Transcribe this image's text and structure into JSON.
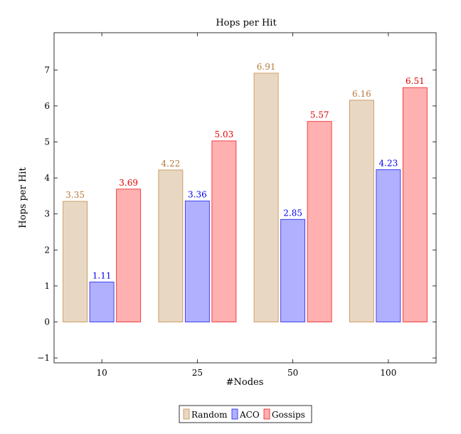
{
  "chart_data": {
    "type": "bar",
    "title": "Hops per Hit",
    "xlabel": "#Nodes",
    "ylabel": "Hops per Hit",
    "categories": [
      "10",
      "25",
      "50",
      "100"
    ],
    "ylim": [
      -1,
      8
    ],
    "yticks": [
      "−1",
      "0",
      "1",
      "2",
      "3",
      "4",
      "5",
      "6",
      "7"
    ],
    "grid": false,
    "legend_position": "bottom-center",
    "series": [
      {
        "name": "Random",
        "values": [
          3.35,
          4.22,
          6.91,
          6.16
        ],
        "labels": [
          "3.35",
          "4.22",
          "6.91",
          "6.16"
        ],
        "fill": "#e8d8c3",
        "stroke": "#c8965a",
        "label_color": "#b5793a"
      },
      {
        "name": "ACO",
        "values": [
          1.11,
          3.36,
          2.85,
          4.23
        ],
        "labels": [
          "1.11",
          "3.36",
          "2.85",
          "4.23"
        ],
        "fill": "#b0b0ff",
        "stroke": "#3333ee",
        "label_color": "#0000ee"
      },
      {
        "name": "Gossips",
        "values": [
          3.69,
          5.03,
          5.57,
          6.51
        ],
        "labels": [
          "3.69",
          "5.03",
          "5.57",
          "6.51"
        ],
        "fill": "#ffb0b0",
        "stroke": "#ee3333",
        "label_color": "#dd0000"
      }
    ]
  }
}
